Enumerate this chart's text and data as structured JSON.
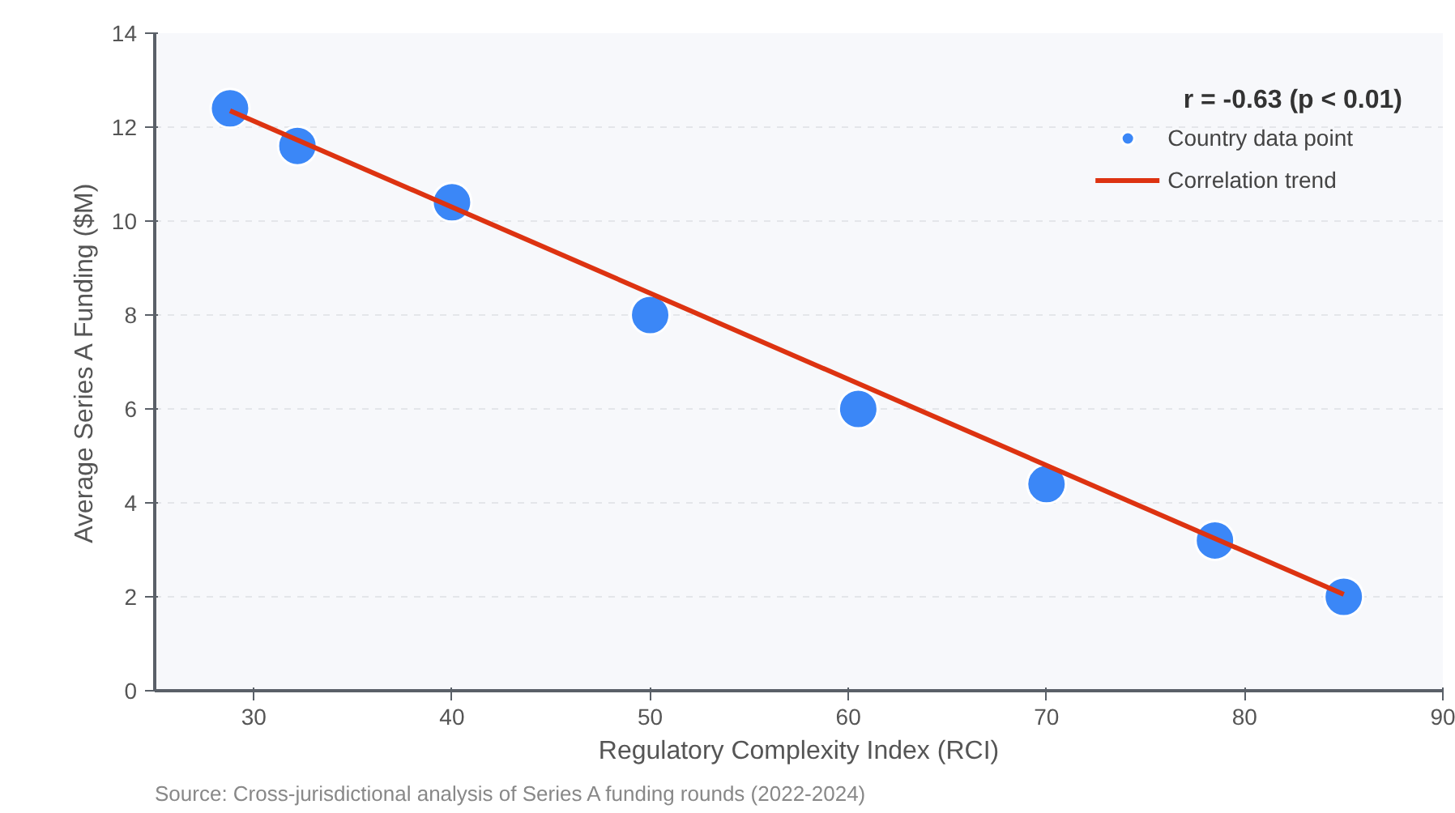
{
  "chart_data": {
    "type": "scatter",
    "xlabel": "Regulatory Complexity Index (RCI)",
    "ylabel": "Average Series A Funding ($M)",
    "annotations": [
      "r = -0.63 (p < 0.01)",
      "Source: Cross-jurisdictional analysis of Series A funding rounds (2022-2024)"
    ],
    "series": [
      {
        "name": "Country data point",
        "marker": "circle",
        "color": "#3b87f7",
        "x": [
          28.8,
          32.2,
          40,
          50,
          60.5,
          70,
          78.5,
          85
        ],
        "values": [
          12.4,
          11.6,
          10.4,
          8,
          6,
          4.4,
          3.2,
          2
        ]
      },
      {
        "name": "Correlation trend",
        "type": "line",
        "color": "#dd3311",
        "x": [
          28.8,
          85
        ],
        "values": [
          12.35,
          2.05
        ]
      }
    ],
    "xlim": [
      25,
      90
    ],
    "xticks": [
      30,
      40,
      50,
      60,
      70,
      80,
      90
    ],
    "ylim": [
      0,
      14
    ],
    "yticks": [
      0,
      2,
      4,
      6,
      8,
      10,
      12,
      14
    ],
    "grid": "y",
    "legend": "top right",
    "line_style": "solid"
  }
}
